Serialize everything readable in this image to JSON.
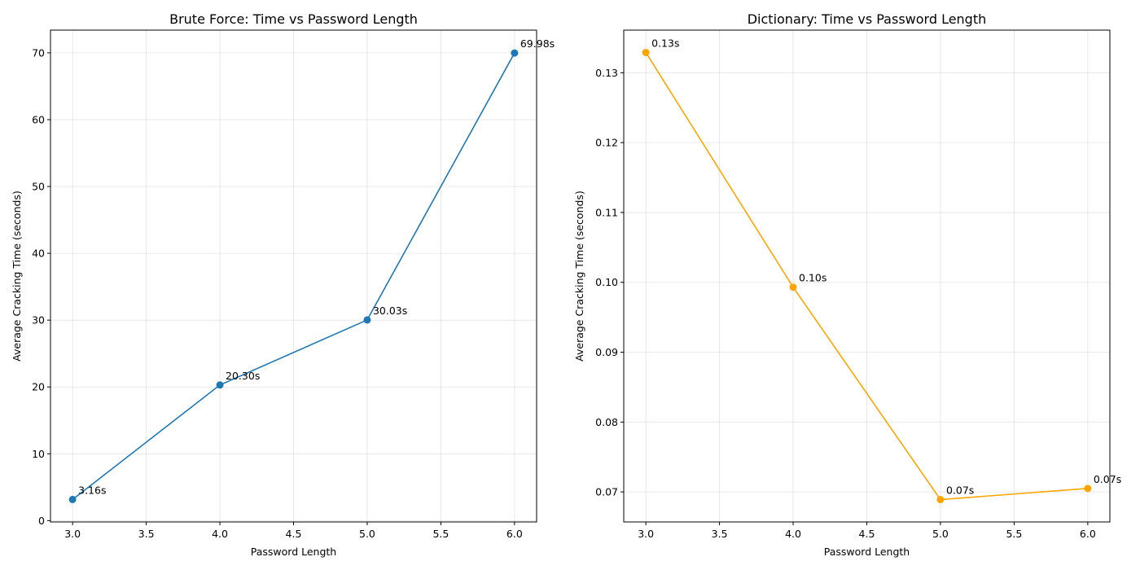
{
  "chart_data": [
    {
      "type": "line",
      "title": "Brute Force: Time vs Password Length",
      "xlabel": "Password Length",
      "ylabel": "Average Cracking Time (seconds)",
      "x": [
        3.0,
        4.0,
        5.0,
        6.0
      ],
      "series": [
        {
          "color": "#1f77b4",
          "values": [
            3.16,
            20.3,
            30.03,
            69.98
          ]
        }
      ],
      "data_labels": [
        "3.16s",
        "20.30s",
        "30.03s",
        "69.98s"
      ],
      "xlim": [
        2.85,
        6.15
      ],
      "ylim": [
        -0.2,
        73.4
      ],
      "xticks": [
        3.0,
        3.5,
        4.0,
        4.5,
        5.0,
        5.5,
        6.0
      ],
      "xtick_labels": [
        "3.0",
        "3.5",
        "4.0",
        "4.5",
        "5.0",
        "5.5",
        "6.0"
      ],
      "yticks": [
        0,
        10,
        20,
        30,
        40,
        50,
        60,
        70
      ],
      "ytick_labels": [
        "0",
        "10",
        "20",
        "30",
        "40",
        "50",
        "60",
        "70"
      ],
      "grid": true
    },
    {
      "type": "line",
      "title": "Dictionary: Time vs Password Length",
      "xlabel": "Password Length",
      "ylabel": "Average Cracking Time (seconds)",
      "x": [
        3.0,
        4.0,
        5.0,
        6.0
      ],
      "series": [
        {
          "color": "#ffa500",
          "values": [
            0.1329,
            0.0993,
            0.0689,
            0.0705
          ]
        }
      ],
      "data_labels": [
        "0.13s",
        "0.10s",
        "0.07s",
        "0.07s"
      ],
      "xlim": [
        2.85,
        6.15
      ],
      "ylim": [
        0.0657,
        0.1361
      ],
      "xticks": [
        3.0,
        3.5,
        4.0,
        4.5,
        5.0,
        5.5,
        6.0
      ],
      "xtick_labels": [
        "3.0",
        "3.5",
        "4.0",
        "4.5",
        "5.0",
        "5.5",
        "6.0"
      ],
      "yticks": [
        0.07,
        0.08,
        0.09,
        0.1,
        0.11,
        0.12,
        0.13
      ],
      "ytick_labels": [
        "0.07",
        "0.08",
        "0.09",
        "0.10",
        "0.11",
        "0.12",
        "0.13"
      ],
      "grid": true
    }
  ]
}
